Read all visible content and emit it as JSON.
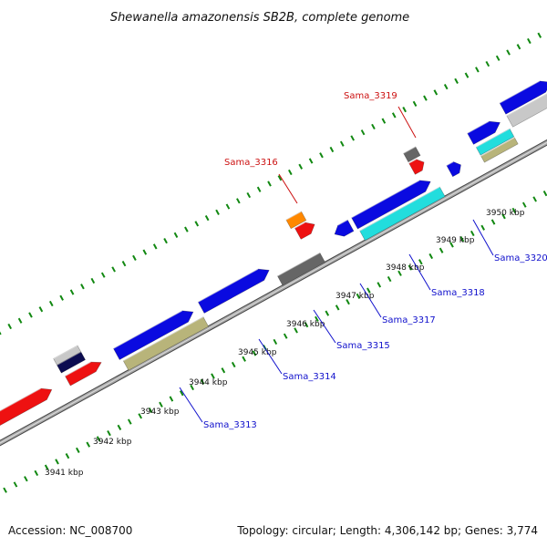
{
  "title": "Shewanella amazonensis SB2B, complete genome",
  "accession": "Accession: NC_008700",
  "summary": "Topology: circular; Length: 4,306,142 bp; Genes: 3,774",
  "scale_labels": [
    "3941 kbp",
    "3942 kbp",
    "3943 kbp",
    "3944 kbp",
    "3945 kbp",
    "3946 kbp",
    "3947 kbp",
    "3948 kbp",
    "3949 kbp",
    "3950 kbp"
  ],
  "gene_labels": [
    {
      "name": "Sama_3313",
      "color": "#1010cc"
    },
    {
      "name": "Sama_3314",
      "color": "#1010cc"
    },
    {
      "name": "Sama_3315",
      "color": "#1010cc"
    },
    {
      "name": "Sama_3316",
      "color": "#cc1111"
    },
    {
      "name": "Sama_3317",
      "color": "#1010cc"
    },
    {
      "name": "Sama_3318",
      "color": "#1010cc"
    },
    {
      "name": "Sama_3319",
      "color": "#cc1111"
    },
    {
      "name": "Sama_3320",
      "color": "#1010cc"
    }
  ],
  "colors": {
    "cds": "#0a0ae0",
    "rna": "#ee1111",
    "trna": "#ff8800",
    "pseudo": "#666666",
    "cog_cyan": "#22dddd",
    "cog_khaki": "#b8b47a",
    "cog_silver": "#c8c8c8",
    "cog_navy": "#0c0c50",
    "backbone": "#8a8a8a",
    "ticks": "#118811"
  }
}
